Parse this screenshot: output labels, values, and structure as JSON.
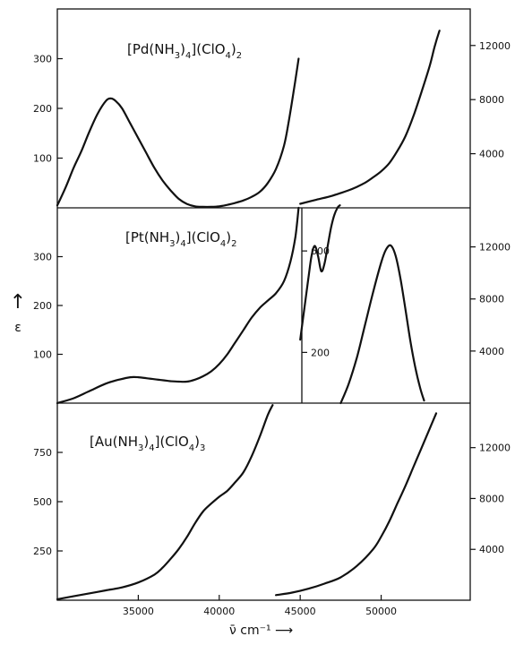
{
  "chart_data": {
    "type": "line",
    "y_axis_symbol": "ε",
    "y_axis_arrow": "↑",
    "x_axis": {
      "label": "ν̄ cm⁻¹ ⟶",
      "ticks": [
        35000,
        40000,
        45000,
        50000
      ],
      "tick_labels": [
        "35000",
        "40000",
        "45000",
        "50000"
      ],
      "range": [
        30000,
        55500
      ]
    },
    "panels": [
      {
        "compound": {
          "pre": "[Pd(NH",
          "sub1": "3",
          "mid": ")",
          "sub2": "4",
          "post": "](ClO",
          "sub3": "4",
          "end": ")",
          "sub4": "2"
        },
        "left_axis": {
          "range": [
            0,
            400
          ],
          "ticks": [
            100,
            200,
            300
          ],
          "tick_labels": [
            "100",
            "200",
            "300"
          ]
        },
        "right_axis": {
          "range": [
            0,
            14700
          ],
          "ticks": [
            4000,
            8000,
            12000
          ],
          "tick_labels": [
            "4000",
            "8000",
            "12000"
          ]
        },
        "series": [
          {
            "axis": "left",
            "x": [
              30000,
              30500,
              31000,
              31500,
              32000,
              32500,
              33000,
              33300,
              33600,
              34000,
              34500,
              35000,
              35500,
              36000,
              36500,
              37000,
              37500,
              38000,
              38500,
              39000,
              39500,
              40000,
              40500,
              41000,
              41500,
              42000,
              42500,
              43000,
              43500,
              44000,
              44300,
              44600,
              44900
            ],
            "y": [
              5,
              40,
              80,
              115,
              155,
              190,
              215,
              220,
              215,
              200,
              170,
              140,
              110,
              80,
              55,
              35,
              18,
              8,
              3,
              2,
              2,
              3,
              6,
              10,
              15,
              22,
              32,
              50,
              78,
              125,
              175,
              235,
              300
            ]
          },
          {
            "axis": "right",
            "x": [
              45000,
              46000,
              47000,
              48000,
              48500,
              49000,
              49500,
              50000,
              50500,
              51000,
              51500,
              52000,
              52500,
              53000,
              53300,
              53600
            ],
            "y": [
              300,
              600,
              900,
              1300,
              1550,
              1850,
              2250,
              2700,
              3300,
              4200,
              5300,
              6800,
              8600,
              10500,
              11900,
              13100
            ]
          }
        ]
      },
      {
        "compound": {
          "pre": "[Pt(NH",
          "sub1": "3",
          "mid": ")",
          "sub2": "4",
          "post": "](ClO",
          "sub3": "4",
          "end": ")",
          "sub4": "2"
        },
        "left_axis": {
          "range": [
            0,
            400
          ],
          "ticks": [
            100,
            200,
            300
          ],
          "tick_labels": [
            "100",
            "200",
            "300"
          ]
        },
        "right_axis": {
          "range": [
            0,
            15000
          ],
          "ticks": [
            4000,
            8000,
            12000
          ],
          "tick_labels": [
            "4000",
            "8000",
            "12000"
          ]
        },
        "inset_axis": {
          "range": [
            0,
            770
          ],
          "ticks": [
            200,
            600
          ],
          "tick_labels": [
            "200",
            "600"
          ]
        },
        "series": [
          {
            "axis": "left",
            "x": [
              30000,
              31000,
              32000,
              33000,
              33800,
              34500,
              35000,
              35500,
              36000,
              36500,
              37000,
              37500,
              38000,
              38500,
              39000,
              39500,
              40000,
              40500,
              41000,
              41500,
              42000,
              42500,
              43000,
              43500,
              44000,
              44400,
              44700,
              44900
            ],
            "y": [
              0,
              10,
              25,
              40,
              48,
              53,
              53,
              51,
              49,
              47,
              45,
              44,
              44,
              48,
              55,
              65,
              80,
              100,
              125,
              150,
              175,
              195,
              210,
              225,
              250,
              290,
              340,
              400
            ]
          },
          {
            "axis": "inset",
            "x": [
              45000,
              45250,
              45500,
              45700,
              45900,
              46100,
              46300,
              46500,
              46700,
              46900,
              47100,
              47300,
              47450
            ],
            "y": [
              250,
              370,
              490,
              580,
              620,
              580,
              520,
              550,
              620,
              690,
              740,
              770,
              780
            ]
          },
          {
            "axis": "right",
            "x": [
              47500,
              48000,
              48500,
              49000,
              49500,
              50000,
              50300,
              50600,
              50900,
              51200,
              51500,
              51800,
              52100,
              52400,
              52650
            ],
            "y": [
              0,
              1500,
              3500,
              6000,
              8500,
              10800,
              11800,
              12100,
              11300,
              9500,
              7200,
              4800,
              2800,
              1200,
              200
            ]
          }
        ]
      },
      {
        "compound": {
          "pre": "[Au(NH",
          "sub1": "3",
          "mid": ")",
          "sub2": "4",
          "post": "](ClO",
          "sub3": "4",
          "end": ")",
          "sub4": "3"
        },
        "left_axis": {
          "range": [
            0,
            1000
          ],
          "ticks": [
            250,
            500,
            750
          ],
          "tick_labels": [
            "250",
            "500",
            "750"
          ]
        },
        "right_axis": {
          "range": [
            0,
            15500
          ],
          "ticks": [
            4000,
            8000,
            12000
          ],
          "tick_labels": [
            "4000",
            "8000",
            "12000"
          ]
        },
        "series": [
          {
            "axis": "left",
            "x": [
              30000,
              31000,
              32000,
              33000,
              34000,
              35000,
              36000,
              36500,
              37000,
              37500,
              38000,
              38500,
              39000,
              39500,
              40000,
              40500,
              41000,
              41500,
              42000,
              42500,
              43000,
              43300
            ],
            "y": [
              5,
              20,
              35,
              50,
              65,
              90,
              130,
              165,
              210,
              260,
              320,
              390,
              450,
              490,
              525,
              555,
              600,
              650,
              730,
              830,
              940,
              990
            ]
          },
          {
            "axis": "right",
            "x": [
              43500,
              44500,
              45500,
              46500,
              47500,
              48500,
              49500,
              50000,
              50500,
              51000,
              51500,
              52000,
              52500,
              53000,
              53400
            ],
            "y": [
              400,
              600,
              900,
              1300,
              1800,
              2700,
              4000,
              5000,
              6200,
              7600,
              9000,
              10500,
              12000,
              13500,
              14700
            ]
          }
        ]
      }
    ]
  }
}
